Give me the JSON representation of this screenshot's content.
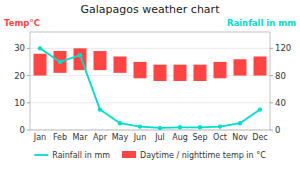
{
  "chart_data": {
    "type": "bar",
    "title": "Galapagos weather chart",
    "ylabel": "Temp°C",
    "y2label": "Rainfall in mm",
    "categories": [
      "Jan",
      "Feb",
      "Mar",
      "Apr",
      "May",
      "Jun",
      "Jul",
      "Aug",
      "Sep",
      "Oct",
      "Nov",
      "Dec"
    ],
    "series": [
      {
        "name": "Rainfall in mm",
        "type": "line",
        "axis": "y2",
        "color": "#00ddcc",
        "marker": "circle",
        "values": [
          120,
          100,
          110,
          30,
          10,
          5,
          3,
          4,
          4,
          5,
          10,
          30
        ]
      },
      {
        "name": "Daytime / nighttime temp in °C",
        "type": "bar",
        "color": "#ff4444",
        "values": [
          28,
          29,
          30,
          29,
          27,
          25,
          24,
          24,
          24,
          25,
          26,
          27
        ],
        "low": [
          20,
          21,
          22,
          22,
          21,
          19,
          18,
          18,
          18,
          19,
          20,
          20
        ]
      }
    ],
    "ylim": [
      0,
      36
    ],
    "yticks": [
      0,
      10,
      20,
      30
    ],
    "y2lim": [
      0,
      144
    ],
    "y2ticks": [
      0,
      40,
      80,
      120
    ],
    "grid": true,
    "legend": "bottom"
  }
}
